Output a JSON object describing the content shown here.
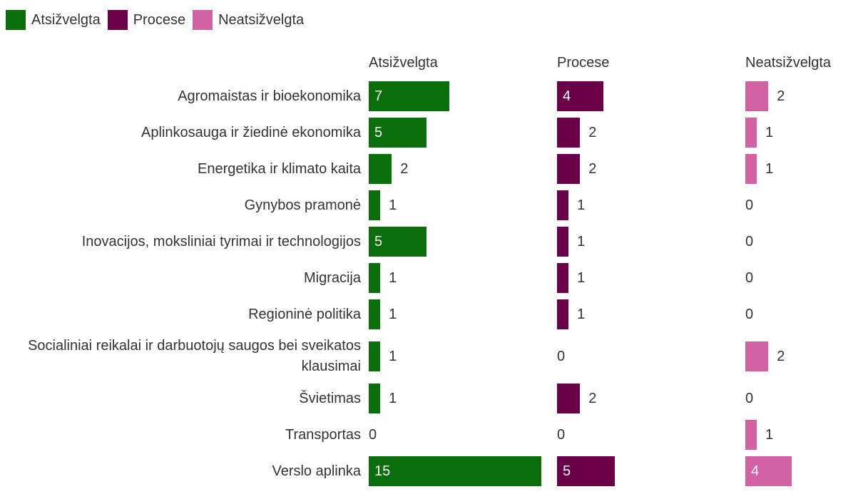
{
  "chart_data": {
    "type": "bar",
    "categories": [
      "Agromaistas ir bioekonomika",
      "Aplinkosauga ir žiedinė ekonomika",
      "Energetika ir klimato kaita",
      "Gynybos pramonė",
      "Inovacijos, moksliniai tyrimai ir technologijos",
      "Migracija",
      "Regioninė politika",
      "Socialiniai reikalai ir darbuotojų saugos bei sveikatos klausimai",
      "Švietimas",
      "Transportas",
      "Verslo aplinka"
    ],
    "series": [
      {
        "name": "Atsižvelgta",
        "color": "#0a6e0a",
        "values": [
          7,
          5,
          2,
          1,
          5,
          1,
          1,
          1,
          1,
          0,
          15
        ]
      },
      {
        "name": "Procese",
        "color": "#6b0049",
        "values": [
          4,
          2,
          2,
          1,
          1,
          1,
          1,
          0,
          2,
          0,
          5
        ]
      },
      {
        "name": "Neatsižvelgta",
        "color": "#d262a4",
        "values": [
          2,
          1,
          1,
          0,
          0,
          0,
          0,
          2,
          0,
          1,
          4
        ]
      }
    ]
  }
}
